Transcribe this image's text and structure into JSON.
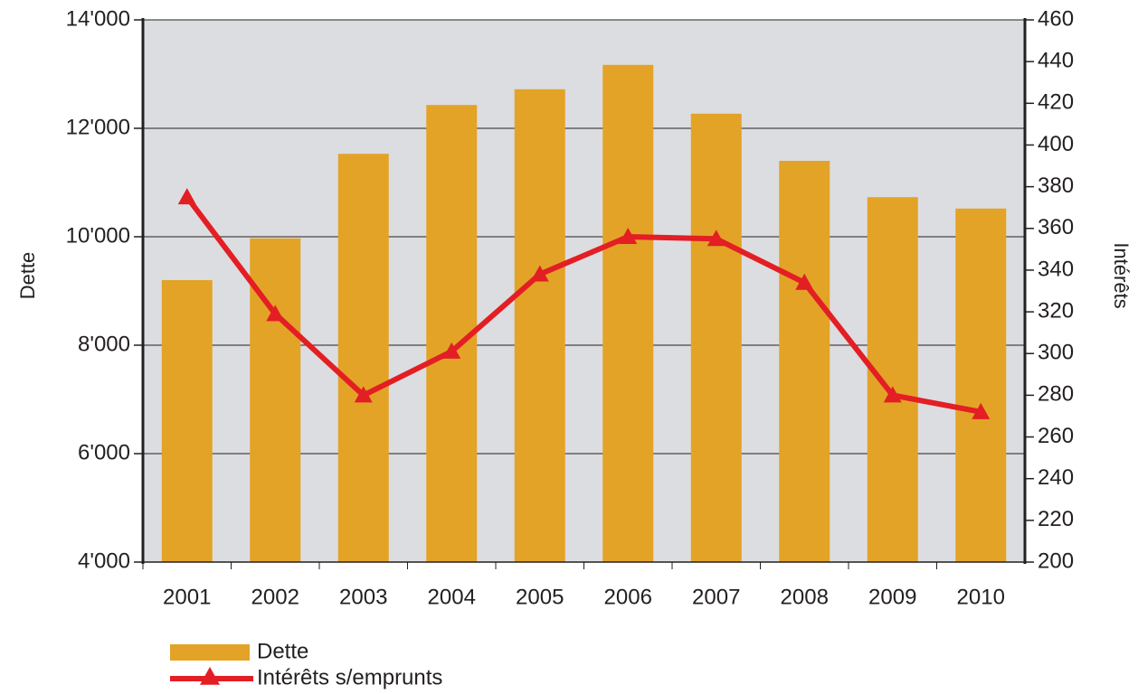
{
  "chart_data": {
    "type": "bar_line",
    "categories": [
      "2001",
      "2002",
      "2003",
      "2004",
      "2005",
      "2006",
      "2007",
      "2008",
      "2009",
      "2010"
    ],
    "ylabel": "Dette",
    "y2label": "Intérêts",
    "ylim": [
      4000,
      14000
    ],
    "yticks": [
      {
        "value": 4000,
        "label": "4'000"
      },
      {
        "value": 6000,
        "label": "6'000"
      },
      {
        "value": 8000,
        "label": "8'000"
      },
      {
        "value": 10000,
        "label": "10'000"
      },
      {
        "value": 12000,
        "label": "12'000"
      },
      {
        "value": 14000,
        "label": "14'000"
      }
    ],
    "y2lim": [
      200,
      460
    ],
    "y2ticks": [
      200,
      220,
      240,
      260,
      280,
      300,
      320,
      340,
      360,
      380,
      400,
      420,
      440,
      460
    ],
    "grid": true,
    "series": [
      {
        "name": "Dette",
        "type": "bar",
        "color": "#e3a327",
        "values": [
          9200,
          9970,
          11530,
          12430,
          12720,
          13170,
          12270,
          11400,
          10730,
          10520
        ]
      },
      {
        "name": "Intérêts s/emprunts",
        "type": "line",
        "axis": "y2",
        "color": "#e31e24",
        "values": [
          375,
          319,
          280,
          301,
          338,
          356,
          355,
          334,
          280,
          272
        ]
      }
    ]
  }
}
